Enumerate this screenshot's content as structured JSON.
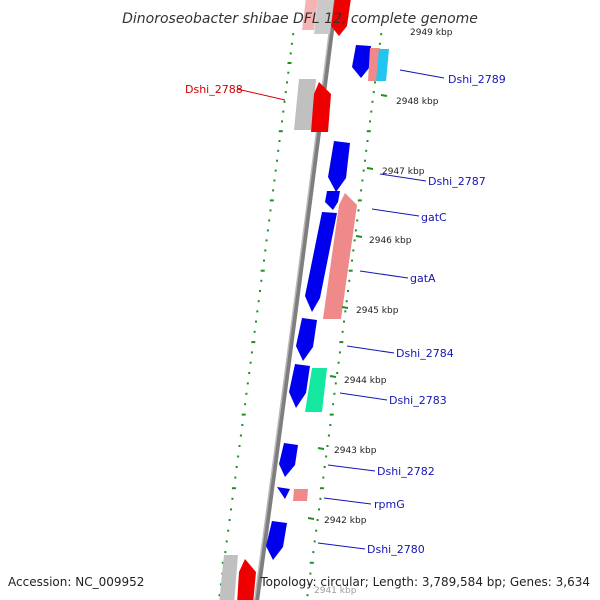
{
  "title": "Dinoroseobacter shibae DFL 12, complete genome",
  "footer": {
    "accession": "Accession: NC_009952",
    "topology": "Topology: circular; Length: 3,789,584 bp; Genes: 3,634"
  },
  "colors": {
    "forward_cds": "#0000ee",
    "reverse_cds": "#ee0000",
    "rrna_like": "#f08a8a",
    "trna_like": "#14e8a0",
    "cyan_feature": "#22c4f0",
    "pseudo_gray": "#c0c0c0",
    "backbone": "#8c8c8c",
    "gc_dots": "#1f8f1f",
    "label_blue": "#1515b5",
    "label_red": "#d40000"
  },
  "kbp_ticks": [
    "2949 kbp",
    "2948 kbp",
    "2947 kbp",
    "2946 kbp",
    "2945 kbp",
    "2944 kbp",
    "2943 kbp",
    "2942 kbp",
    "2941 kbp"
  ],
  "gene_labels": [
    {
      "name": "Dshi_2789",
      "color": "blue"
    },
    {
      "name": "Dshi_2788",
      "color": "red"
    },
    {
      "name": "Dshi_2787",
      "color": "blue"
    },
    {
      "name": "gatC",
      "color": "blue"
    },
    {
      "name": "gatA",
      "color": "blue"
    },
    {
      "name": "Dshi_2784",
      "color": "blue"
    },
    {
      "name": "Dshi_2783",
      "color": "blue"
    },
    {
      "name": "Dshi_2782",
      "color": "blue"
    },
    {
      "name": "rpmG",
      "color": "blue"
    },
    {
      "name": "Dshi_2780",
      "color": "blue"
    }
  ]
}
